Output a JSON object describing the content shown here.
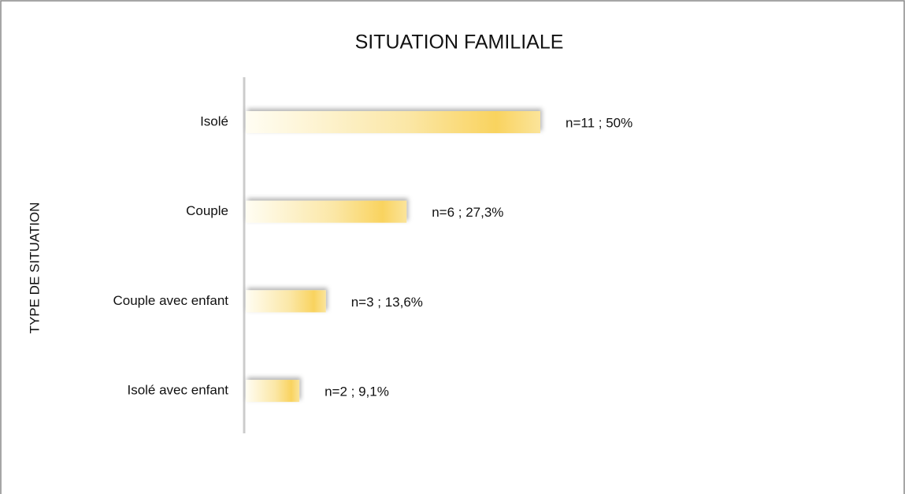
{
  "chart_data": {
    "type": "bar",
    "orientation": "horizontal",
    "title": "SITUATION FAMILIALE",
    "y_label": "TYPE DE SITUATION",
    "categories": [
      "Isolé",
      "Couple",
      "Couple avec enfant",
      "Isolé avec enfant"
    ],
    "values": [
      50,
      27.3,
      13.6,
      9.1
    ],
    "value_labels": [
      "n=11 ; 50%",
      "n=6 ; 27,3%",
      "n=3 ; 13,6%",
      "n=2 ; 9,1%"
    ],
    "color": "#f9d35f"
  }
}
